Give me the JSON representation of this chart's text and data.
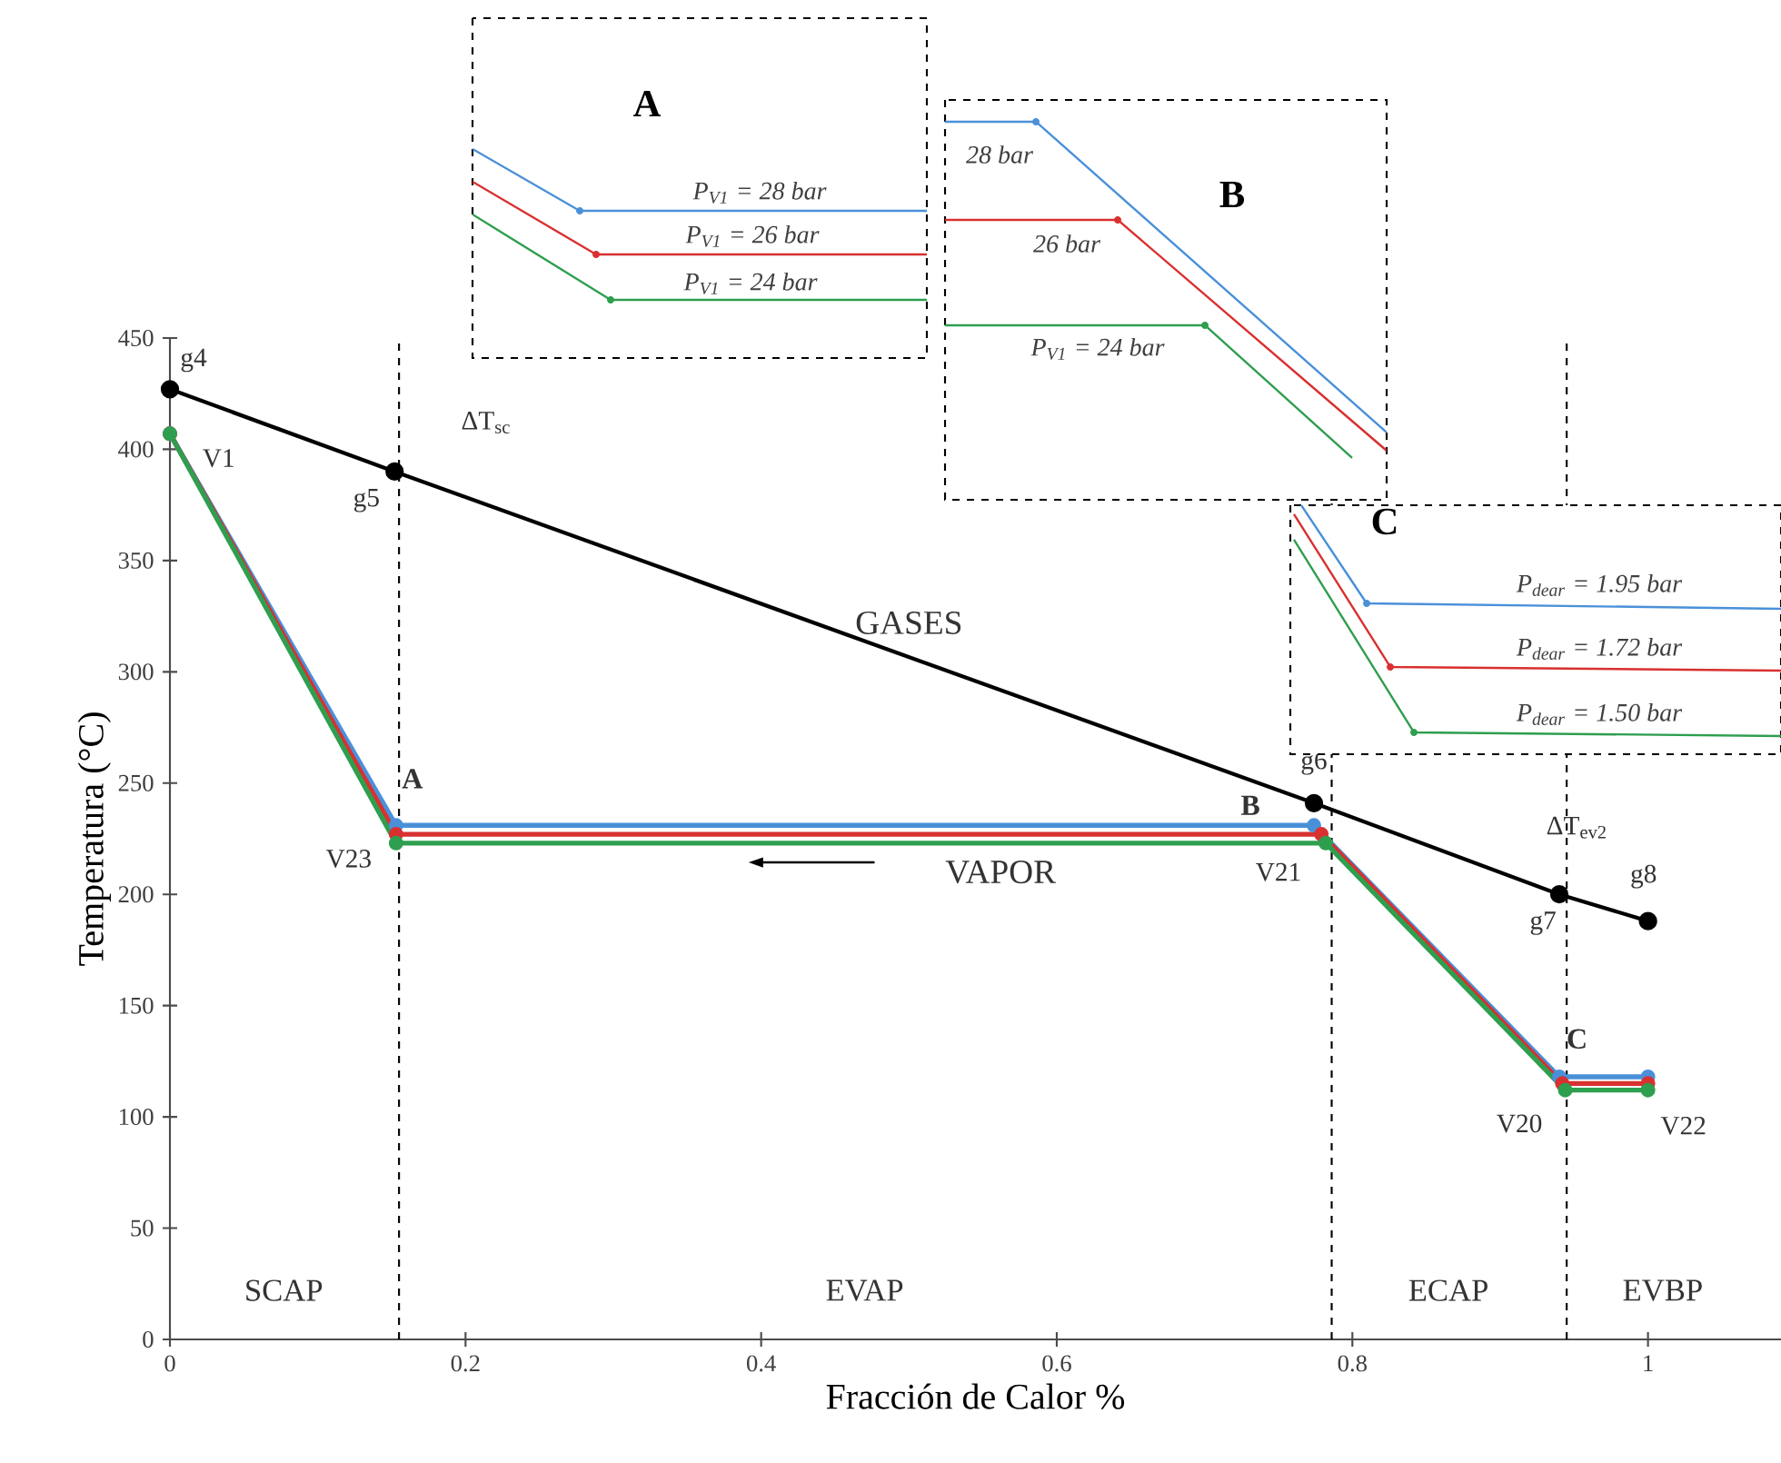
{
  "chart_data": [
    {
      "type": "line",
      "xlabel": "Fracción de Calor %",
      "ylabel": "Temperatura (°C)",
      "xlim": [
        0,
        1.09
      ],
      "ylim": [
        0,
        450
      ],
      "xticks": [
        0,
        0.2,
        0.4,
        0.6,
        0.8,
        1
      ],
      "yticks": [
        0,
        50,
        100,
        150,
        200,
        250,
        300,
        350,
        400,
        450
      ],
      "marker": "circle",
      "series": [
        {
          "color": "#000000",
          "x": [
            0,
            0.152,
            0.774,
            0.94,
            1.0
          ],
          "values": [
            427,
            390,
            241,
            200,
            188
          ]
        },
        {
          "color": "#4a90d9",
          "x": [
            0,
            0.153,
            0.774,
            0.94,
            1.0
          ],
          "values": [
            407,
            231,
            231,
            118,
            118
          ]
        },
        {
          "color": "#d93030",
          "x": [
            0,
            0.153,
            0.779,
            0.942,
            1.0
          ],
          "values": [
            407,
            227,
            227,
            115,
            115
          ]
        },
        {
          "color": "#2e9e4f",
          "x": [
            0,
            0.153,
            0.782,
            0.944,
            1.0
          ],
          "values": [
            407,
            223,
            223,
            112,
            112
          ]
        }
      ],
      "ref_lines": [
        {
          "axis": "x",
          "value": 0.155,
          "color": "#000000",
          "line_style": "dashed"
        },
        {
          "axis": "x",
          "value": 0.786,
          "color": "#000000",
          "line_style": "dashed"
        },
        {
          "axis": "x",
          "value": 0.945,
          "color": "#000000",
          "line_style": "dashed"
        }
      ],
      "annotations": [
        "g4",
        "V1",
        "g5",
        "A",
        "V23",
        "g6",
        "B",
        "V21",
        "ΔT$_{ev2}$",
        "g7",
        "g8",
        "C",
        "V20",
        "V22",
        "ΔT$_{sc}$",
        "GASES",
        "VAPOR",
        "SCAP",
        "EVAP",
        "ECAP",
        "EVBP"
      ]
    },
    {
      "type": "other",
      "title": "A",
      "annotations": [
        "P$_{V1}$ = 28 bar",
        "P$_{V1}$ = 26 bar",
        "P$_{V1}$ = 24 bar"
      ]
    },
    {
      "type": "other",
      "title": "B",
      "annotations": [
        "28 bar",
        "26 bar",
        "P$_{V1}$ = 24 bar"
      ]
    },
    {
      "type": "other",
      "title": "C",
      "annotations": [
        "P$_{dear}$ = 1.95 bar",
        "P$_{dear}$ = 1.72 bar",
        "P$_{dear}$ = 1.50 bar"
      ]
    }
  ]
}
